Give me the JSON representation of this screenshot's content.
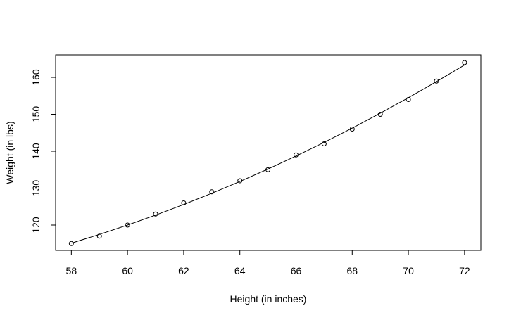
{
  "chart_data": {
    "type": "scatter",
    "x_label": "Height (in inches)",
    "y_label": "Weight (in lbs)",
    "x": [
      58,
      59,
      60,
      61,
      62,
      63,
      64,
      65,
      66,
      67,
      68,
      69,
      70,
      71,
      72
    ],
    "y": [
      115,
      117,
      120,
      123,
      126,
      129,
      132,
      135,
      139,
      142,
      146,
      150,
      154,
      159,
      164
    ],
    "fit": [
      115.09,
      117.46,
      120.0,
      122.7,
      125.57,
      128.6,
      131.8,
      135.17,
      138.7,
      142.4,
      146.26,
      150.29,
      154.49,
      158.85,
      163.38
    ],
    "color": "#000000",
    "xlim": [
      57.44,
      72.58
    ],
    "ylim": [
      113.14,
      166.1
    ],
    "xticks": [
      58,
      60,
      62,
      64,
      66,
      68,
      70,
      72
    ],
    "yticks": [
      120,
      130,
      140,
      150,
      160
    ]
  }
}
